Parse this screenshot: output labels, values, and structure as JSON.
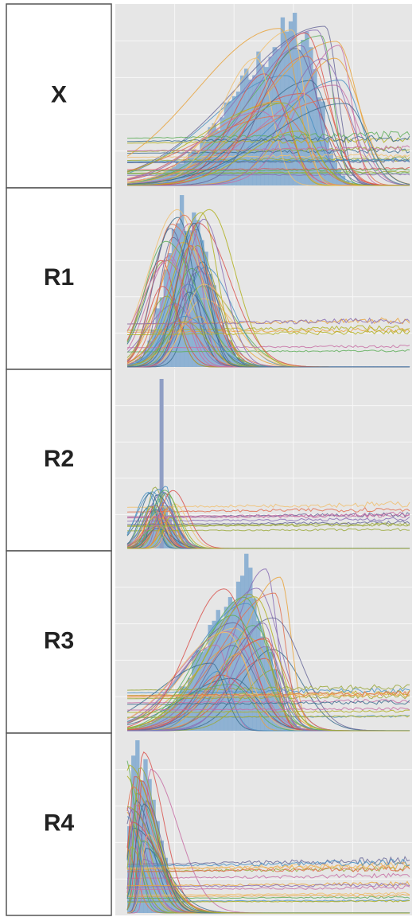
{
  "panels": [
    {
      "label": "X"
    },
    {
      "label": "R1"
    },
    {
      "label": "R2"
    },
    {
      "label": "R3"
    },
    {
      "label": "R4"
    }
  ]
}
